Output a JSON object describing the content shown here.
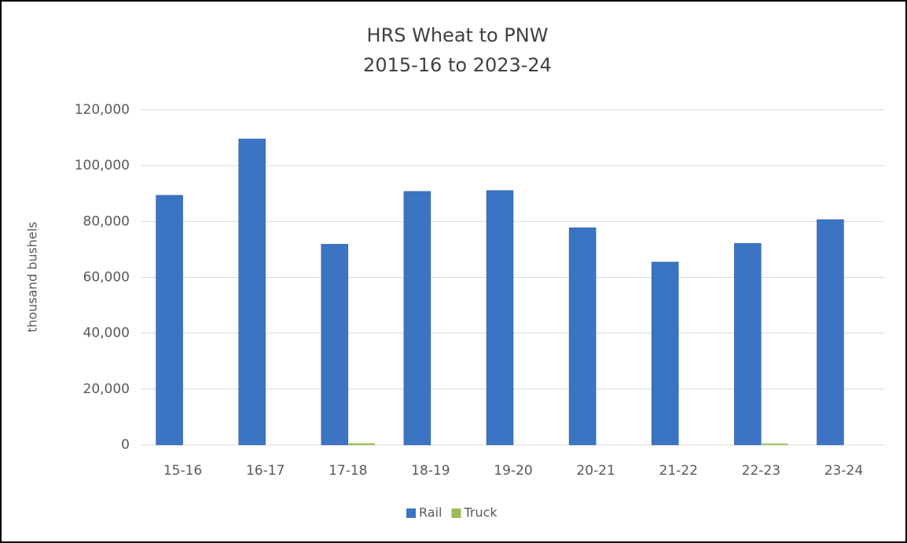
{
  "chart_data": {
    "type": "bar",
    "title": "HRS Wheat to PNW",
    "subtitle": "2015-16 to 2023-24",
    "y_label": "thousand bushels",
    "categories": [
      "15-16",
      "16-17",
      "17-18",
      "18-19",
      "19-20",
      "20-21",
      "21-22",
      "22-23",
      "23-24"
    ],
    "series": [
      {
        "name": "Rail",
        "color": "#3b74c2",
        "values": [
          89400,
          109600,
          71900,
          90800,
          91100,
          77800,
          65500,
          72200,
          80700
        ]
      },
      {
        "name": "Truck",
        "color": "#9bbb59",
        "values": [
          0,
          0,
          500,
          0,
          0,
          0,
          0,
          400,
          0
        ]
      }
    ],
    "ylim": [
      0,
      120000
    ],
    "yticks": [
      0,
      {
        "value": 20000,
        "label": "20,000"
      },
      {
        "value": 40000,
        "label": "40,000"
      },
      {
        "value": 60000,
        "label": "60,000"
      },
      {
        "value": 80000,
        "label": "80,000"
      },
      {
        "value": 100000,
        "label": "100,000"
      },
      {
        "value": 120000,
        "label": "120,000"
      }
    ],
    "grid": true,
    "legend": "bottom"
  }
}
